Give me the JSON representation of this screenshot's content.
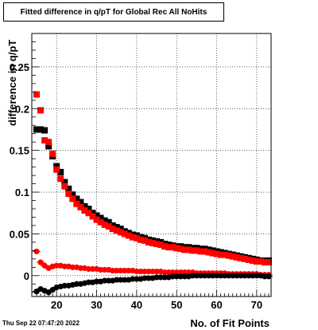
{
  "chart_data": {
    "type": "scatter",
    "title": "Fitted difference in q/pT for Global Rec All NoHits",
    "xlabel": "No. of Fit Points",
    "ylabel": "difference in q/pT",
    "xlim": [
      13.8,
      73.6
    ],
    "ylim": [
      -0.025,
      0.29
    ],
    "x_ticks": [
      20,
      30,
      40,
      50,
      60,
      70
    ],
    "y_ticks": [
      0,
      0.05,
      0.1,
      0.15,
      0.2,
      0.25
    ],
    "x_tick_labels": [
      "20",
      "30",
      "40",
      "50",
      "60",
      "70"
    ],
    "y_tick_labels": [
      "0",
      "0.05",
      "0.1",
      "0.15",
      "0.2",
      "0.25"
    ],
    "grid": true,
    "legend": "none",
    "series": [
      {
        "marker": "square",
        "color": "#000000",
        "x": [
          15,
          16,
          17,
          18,
          19,
          20,
          21,
          22,
          23,
          24,
          25,
          26,
          27,
          28,
          29,
          30,
          31,
          32,
          33,
          34,
          35,
          36,
          37,
          38,
          39,
          40,
          41,
          42,
          43,
          44,
          45,
          46,
          47,
          48,
          49,
          50,
          51,
          52,
          53,
          54,
          55,
          56,
          57,
          58,
          59,
          60,
          61,
          62,
          63,
          64,
          65,
          66,
          67,
          68,
          69,
          70,
          71,
          72,
          73
        ],
        "y": [
          0.175,
          0.175,
          0.174,
          0.155,
          0.143,
          0.131,
          0.124,
          0.112,
          0.104,
          0.097,
          0.092,
          0.088,
          0.083,
          0.08,
          0.075,
          0.072,
          0.069,
          0.066,
          0.064,
          0.06,
          0.058,
          0.056,
          0.053,
          0.051,
          0.049,
          0.048,
          0.046,
          0.045,
          0.043,
          0.042,
          0.041,
          0.04,
          0.038,
          0.037,
          0.036,
          0.035,
          0.035,
          0.034,
          0.034,
          0.033,
          0.033,
          0.032,
          0.032,
          0.031,
          0.03,
          0.029,
          0.028,
          0.027,
          0.026,
          0.025,
          0.024,
          0.023,
          0.022,
          0.021,
          0.02,
          0.019,
          0.018,
          0.018,
          0.018
        ]
      },
      {
        "marker": "square",
        "color": "#ff0000",
        "x": [
          15,
          16,
          17,
          18,
          19,
          20,
          21,
          22,
          23,
          24,
          25,
          26,
          27,
          28,
          29,
          30,
          31,
          32,
          33,
          34,
          35,
          36,
          37,
          38,
          39,
          40,
          41,
          42,
          43,
          44,
          45,
          46,
          47,
          48,
          49,
          50,
          51,
          52,
          53,
          54,
          55,
          56,
          57,
          58,
          59,
          60,
          61,
          62,
          63,
          64,
          65,
          66,
          67,
          68,
          69,
          70,
          71,
          72,
          73
        ],
        "y": [
          0.217,
          0.198,
          0.162,
          0.16,
          0.146,
          0.127,
          0.116,
          0.107,
          0.098,
          0.092,
          0.086,
          0.082,
          0.078,
          0.075,
          0.071,
          0.067,
          0.064,
          0.061,
          0.059,
          0.056,
          0.054,
          0.052,
          0.05,
          0.048,
          0.046,
          0.045,
          0.043,
          0.042,
          0.04,
          0.039,
          0.038,
          0.037,
          0.035,
          0.034,
          0.034,
          0.033,
          0.032,
          0.031,
          0.031,
          0.03,
          0.03,
          0.029,
          0.029,
          0.028,
          0.027,
          0.026,
          0.025,
          0.025,
          0.024,
          0.023,
          0.022,
          0.021,
          0.02,
          0.019,
          0.018,
          0.017,
          0.017,
          0.016,
          0.016
        ]
      },
      {
        "marker": "circle",
        "color": "#ff0000",
        "x": [
          15,
          16,
          17,
          18,
          19,
          20,
          21,
          22,
          23,
          24,
          25,
          26,
          27,
          28,
          29,
          30,
          31,
          32,
          33,
          34,
          35,
          36,
          37,
          38,
          39,
          40,
          41,
          42,
          43,
          44,
          45,
          46,
          47,
          48,
          49,
          50,
          51,
          52,
          53,
          54,
          55,
          56,
          57,
          58,
          59,
          60,
          61,
          62,
          63,
          64,
          65,
          66,
          67,
          68,
          69,
          70,
          71,
          72,
          73
        ],
        "y": [
          0.029,
          0.016,
          0.012,
          0.009,
          0.011,
          0.012,
          0.012,
          0.011,
          0.011,
          0.01,
          0.01,
          0.009,
          0.009,
          0.008,
          0.008,
          0.008,
          0.007,
          0.007,
          0.007,
          0.006,
          0.006,
          0.006,
          0.006,
          0.006,
          0.006,
          0.005,
          0.005,
          0.005,
          0.005,
          0.005,
          0.005,
          0.005,
          0.004,
          0.004,
          0.004,
          0.004,
          0.004,
          0.004,
          0.004,
          0.004,
          0.003,
          0.003,
          0.003,
          0.003,
          0.003,
          0.003,
          0.003,
          0.003,
          0.002,
          0.002,
          0.002,
          0.002,
          0.002,
          0.002,
          0.002,
          0.002,
          0.001,
          0.001,
          0.001
        ]
      },
      {
        "marker": "circle",
        "color": "#000000",
        "x": [
          15,
          16,
          17,
          18,
          19,
          20,
          21,
          22,
          23,
          24,
          25,
          26,
          27,
          28,
          29,
          30,
          31,
          32,
          33,
          34,
          35,
          36,
          37,
          38,
          39,
          40,
          41,
          42,
          43,
          44,
          45,
          46,
          47,
          48,
          49,
          50,
          51,
          52,
          53,
          54,
          55,
          56,
          57,
          58,
          59,
          60,
          61,
          62,
          63,
          64,
          65,
          66,
          67,
          68,
          69,
          70,
          71,
          72,
          73
        ],
        "y": [
          -0.019,
          -0.016,
          -0.018,
          -0.02,
          -0.017,
          -0.014,
          -0.013,
          -0.012,
          -0.012,
          -0.011,
          -0.01,
          -0.01,
          -0.009,
          -0.008,
          -0.008,
          -0.007,
          -0.007,
          -0.006,
          -0.006,
          -0.006,
          -0.005,
          -0.005,
          -0.005,
          -0.005,
          -0.004,
          -0.004,
          -0.004,
          -0.003,
          -0.003,
          -0.003,
          -0.002,
          -0.002,
          -0.002,
          -0.002,
          -0.001,
          -0.001,
          -0.001,
          -0.001,
          -0.001,
          0.0,
          0.0,
          0.0,
          0.0,
          0.0,
          0.0,
          0.0,
          0.0,
          0.0,
          0.0,
          0.0,
          0.0,
          0.0,
          0.0,
          0.0,
          0.0,
          0.0,
          0.0,
          -0.001,
          -0.001
        ]
      }
    ]
  },
  "footer": {
    "timestamp": "Thu Sep 22 07:47:20 2022"
  }
}
